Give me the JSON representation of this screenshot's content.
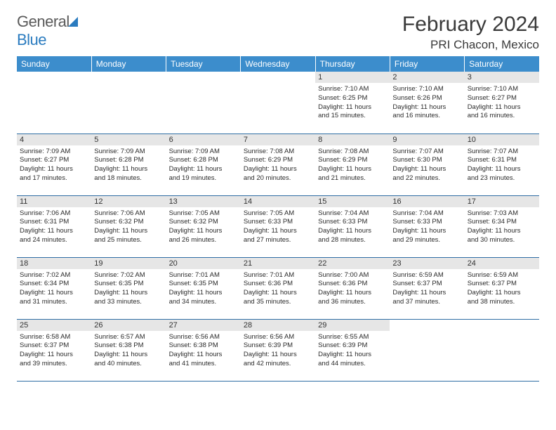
{
  "brand": {
    "part1": "General",
    "part2": "Blue"
  },
  "title": "February 2024",
  "location": "PRI Chacon, Mexico",
  "colors": {
    "header_bg": "#3c8dcc",
    "header_text": "#ffffff",
    "row_border": "#2e6da4",
    "daynum_bg": "#e6e6e6",
    "text": "#2b2b2b",
    "brand_gray": "#5a5a5a",
    "brand_blue": "#2a7bbf"
  },
  "dayNames": [
    "Sunday",
    "Monday",
    "Tuesday",
    "Wednesday",
    "Thursday",
    "Friday",
    "Saturday"
  ],
  "weeks": [
    [
      null,
      null,
      null,
      null,
      {
        "n": "1",
        "sunrise": "7:10 AM",
        "sunset": "6:25 PM",
        "dh": "11",
        "dm": "15"
      },
      {
        "n": "2",
        "sunrise": "7:10 AM",
        "sunset": "6:26 PM",
        "dh": "11",
        "dm": "16"
      },
      {
        "n": "3",
        "sunrise": "7:10 AM",
        "sunset": "6:27 PM",
        "dh": "11",
        "dm": "16"
      }
    ],
    [
      {
        "n": "4",
        "sunrise": "7:09 AM",
        "sunset": "6:27 PM",
        "dh": "11",
        "dm": "17"
      },
      {
        "n": "5",
        "sunrise": "7:09 AM",
        "sunset": "6:28 PM",
        "dh": "11",
        "dm": "18"
      },
      {
        "n": "6",
        "sunrise": "7:09 AM",
        "sunset": "6:28 PM",
        "dh": "11",
        "dm": "19"
      },
      {
        "n": "7",
        "sunrise": "7:08 AM",
        "sunset": "6:29 PM",
        "dh": "11",
        "dm": "20"
      },
      {
        "n": "8",
        "sunrise": "7:08 AM",
        "sunset": "6:29 PM",
        "dh": "11",
        "dm": "21"
      },
      {
        "n": "9",
        "sunrise": "7:07 AM",
        "sunset": "6:30 PM",
        "dh": "11",
        "dm": "22"
      },
      {
        "n": "10",
        "sunrise": "7:07 AM",
        "sunset": "6:31 PM",
        "dh": "11",
        "dm": "23"
      }
    ],
    [
      {
        "n": "11",
        "sunrise": "7:06 AM",
        "sunset": "6:31 PM",
        "dh": "11",
        "dm": "24"
      },
      {
        "n": "12",
        "sunrise": "7:06 AM",
        "sunset": "6:32 PM",
        "dh": "11",
        "dm": "25"
      },
      {
        "n": "13",
        "sunrise": "7:05 AM",
        "sunset": "6:32 PM",
        "dh": "11",
        "dm": "26"
      },
      {
        "n": "14",
        "sunrise": "7:05 AM",
        "sunset": "6:33 PM",
        "dh": "11",
        "dm": "27"
      },
      {
        "n": "15",
        "sunrise": "7:04 AM",
        "sunset": "6:33 PM",
        "dh": "11",
        "dm": "28"
      },
      {
        "n": "16",
        "sunrise": "7:04 AM",
        "sunset": "6:33 PM",
        "dh": "11",
        "dm": "29"
      },
      {
        "n": "17",
        "sunrise": "7:03 AM",
        "sunset": "6:34 PM",
        "dh": "11",
        "dm": "30"
      }
    ],
    [
      {
        "n": "18",
        "sunrise": "7:02 AM",
        "sunset": "6:34 PM",
        "dh": "11",
        "dm": "31"
      },
      {
        "n": "19",
        "sunrise": "7:02 AM",
        "sunset": "6:35 PM",
        "dh": "11",
        "dm": "33"
      },
      {
        "n": "20",
        "sunrise": "7:01 AM",
        "sunset": "6:35 PM",
        "dh": "11",
        "dm": "34"
      },
      {
        "n": "21",
        "sunrise": "7:01 AM",
        "sunset": "6:36 PM",
        "dh": "11",
        "dm": "35"
      },
      {
        "n": "22",
        "sunrise": "7:00 AM",
        "sunset": "6:36 PM",
        "dh": "11",
        "dm": "36"
      },
      {
        "n": "23",
        "sunrise": "6:59 AM",
        "sunset": "6:37 PM",
        "dh": "11",
        "dm": "37"
      },
      {
        "n": "24",
        "sunrise": "6:59 AM",
        "sunset": "6:37 PM",
        "dh": "11",
        "dm": "38"
      }
    ],
    [
      {
        "n": "25",
        "sunrise": "6:58 AM",
        "sunset": "6:37 PM",
        "dh": "11",
        "dm": "39"
      },
      {
        "n": "26",
        "sunrise": "6:57 AM",
        "sunset": "6:38 PM",
        "dh": "11",
        "dm": "40"
      },
      {
        "n": "27",
        "sunrise": "6:56 AM",
        "sunset": "6:38 PM",
        "dh": "11",
        "dm": "41"
      },
      {
        "n": "28",
        "sunrise": "6:56 AM",
        "sunset": "6:39 PM",
        "dh": "11",
        "dm": "42"
      },
      {
        "n": "29",
        "sunrise": "6:55 AM",
        "sunset": "6:39 PM",
        "dh": "11",
        "dm": "44"
      },
      null,
      null
    ]
  ],
  "labels": {
    "sunrise": "Sunrise:",
    "sunset": "Sunset:",
    "daylight_prefix": "Daylight:",
    "hours_word": "hours",
    "and_word": "and",
    "minutes_word": "minutes."
  }
}
